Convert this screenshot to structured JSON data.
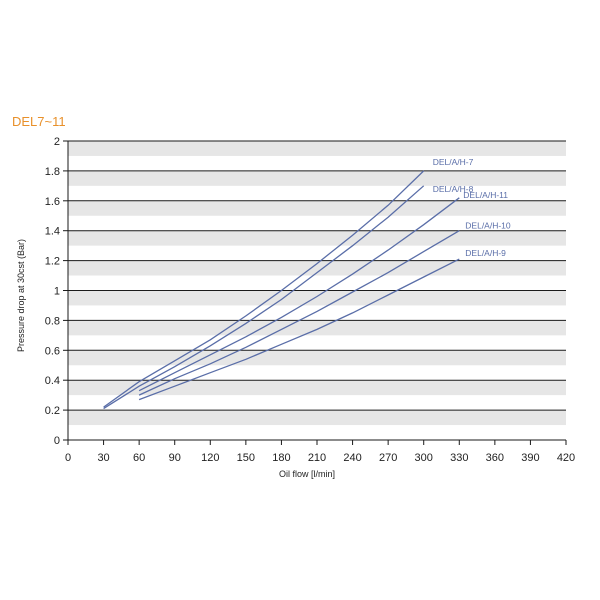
{
  "chart_data": {
    "type": "line",
    "title": "DEL7~11",
    "xlabel": "Oil flow [l/min]",
    "ylabel": "Pressure drop at 30cst (Bar)",
    "xlim": [
      0,
      420
    ],
    "ylim": [
      0,
      2
    ],
    "xticks": [
      0,
      30,
      60,
      90,
      120,
      150,
      180,
      210,
      240,
      270,
      300,
      330,
      360,
      390,
      420
    ],
    "yticks": [
      0,
      0.2,
      0.4,
      0.6,
      0.8,
      1,
      1.2,
      1.4,
      1.6,
      1.8,
      2
    ],
    "grid": "horizontal banded",
    "series_color": "#5a6ea8",
    "series": [
      {
        "name": "DEL/A/H-7",
        "x": [
          30,
          60,
          90,
          120,
          150,
          180,
          210,
          240,
          270,
          300
        ],
        "y": [
          0.22,
          0.39,
          0.53,
          0.67,
          0.83,
          1.0,
          1.18,
          1.37,
          1.57,
          1.8
        ]
      },
      {
        "name": "DEL/A/H-8",
        "x": [
          30,
          60,
          90,
          120,
          150,
          180,
          210,
          240,
          270,
          300
        ],
        "y": [
          0.21,
          0.36,
          0.49,
          0.63,
          0.78,
          0.94,
          1.12,
          1.3,
          1.49,
          1.7
        ]
      },
      {
        "name": "DEL/A/H-11",
        "x": [
          60,
          90,
          120,
          150,
          180,
          210,
          240,
          270,
          300,
          330
        ],
        "y": [
          0.33,
          0.45,
          0.57,
          0.69,
          0.82,
          0.96,
          1.11,
          1.27,
          1.44,
          1.62
        ]
      },
      {
        "name": "DEL/A/H-10",
        "x": [
          60,
          90,
          120,
          150,
          180,
          210,
          240,
          270,
          300,
          330
        ],
        "y": [
          0.3,
          0.41,
          0.51,
          0.62,
          0.74,
          0.86,
          0.99,
          1.12,
          1.26,
          1.4
        ]
      },
      {
        "name": "DEL/A/H-9",
        "x": [
          60,
          90,
          120,
          150,
          180,
          210,
          240,
          270,
          300,
          330
        ],
        "y": [
          0.27,
          0.36,
          0.45,
          0.54,
          0.64,
          0.74,
          0.85,
          0.97,
          1.09,
          1.21
        ]
      }
    ]
  }
}
